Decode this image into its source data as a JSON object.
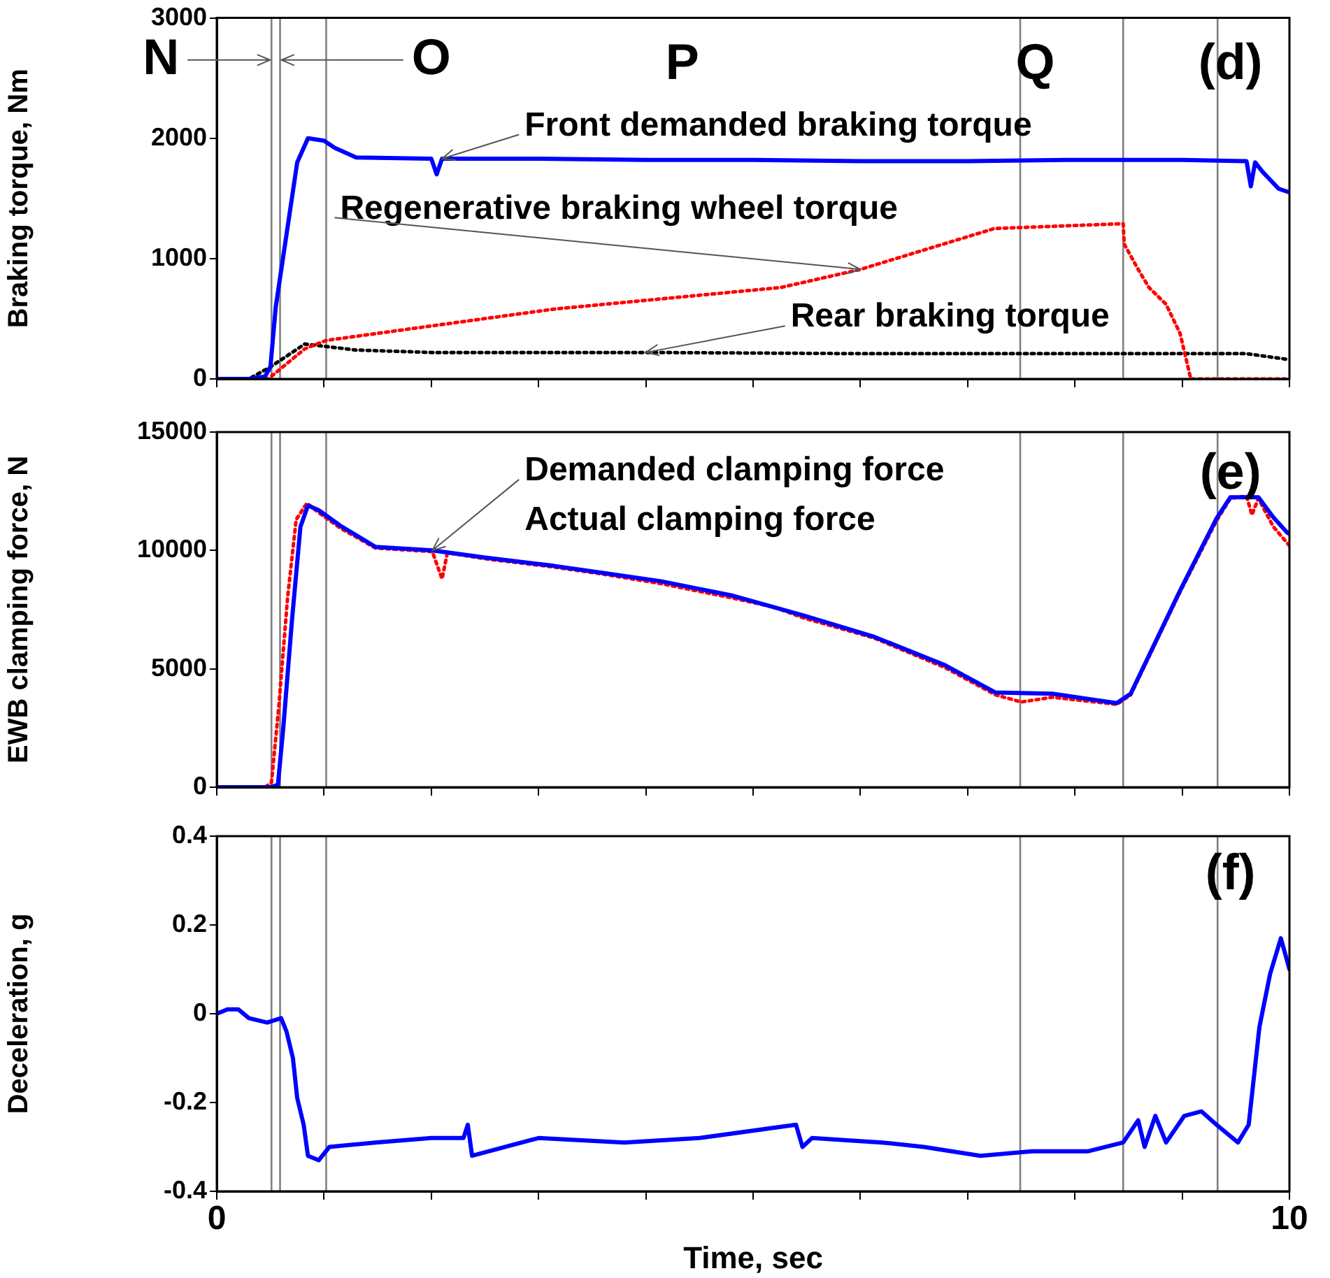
{
  "chart_data": [
    {
      "type": "line",
      "ylabel": "Braking torque, Nm",
      "xlim": [
        0,
        10
      ],
      "ylim": [
        0,
        3000
      ],
      "yticks": [
        0,
        1000,
        2000,
        3000
      ],
      "xticks": [
        {
          "value": 0,
          "label": null
        },
        {
          "value": 1,
          "label": null
        },
        {
          "value": 2,
          "label": null
        },
        {
          "value": 3,
          "label": null
        },
        {
          "value": 4,
          "label": null
        },
        {
          "value": 5,
          "label": null
        },
        {
          "value": 6,
          "label": null
        },
        {
          "value": 7,
          "label": null
        },
        {
          "value": 8,
          "label": null
        },
        {
          "value": 9,
          "label": null
        },
        {
          "value": 10,
          "label": null
        }
      ],
      "tick_labels": "y",
      "grid": false,
      "legend": false,
      "marker": "none",
      "annotations": [
        {
          "text": "N",
          "x": 0.51,
          "y": 2650
        },
        {
          "text": "O",
          "x": 0.59,
          "y": 2650
        },
        "P",
        "Q",
        "(d)"
      ],
      "ref_lines": [
        {
          "axis": "x",
          "value": 0.51,
          "color": "#808080"
        },
        {
          "axis": "x",
          "value": 0.59,
          "color": "#808080"
        },
        {
          "axis": "x",
          "value": 1.02,
          "color": "#808080"
        },
        {
          "axis": "x",
          "value": 7.49,
          "color": "#808080"
        },
        {
          "axis": "x",
          "value": 8.45,
          "color": "#808080"
        },
        {
          "axis": "x",
          "value": 9.33,
          "color": "#808080"
        }
      ],
      "series": [
        {
          "name": "Front demanded braking torque",
          "color": "#0000ff",
          "line_style": "solid",
          "x": [
            0,
            0.3,
            0.45,
            0.5,
            0.55,
            0.65,
            0.75,
            0.85,
            1.0,
            1.1,
            1.3,
            2.0,
            2.05,
            2.1,
            3,
            4,
            5,
            6,
            7,
            8,
            9,
            9.6,
            9.64,
            9.68,
            9.75,
            9.9,
            10
          ],
          "values": [
            0,
            0,
            20,
            100,
            600,
            1200,
            1800,
            2000,
            1980,
            1920,
            1840,
            1830,
            1700,
            1830,
            1830,
            1820,
            1820,
            1810,
            1810,
            1820,
            1820,
            1810,
            1600,
            1800,
            1720,
            1580,
            1550
          ]
        },
        {
          "name": "Regenerative braking wheel torque",
          "color": "#ff0000",
          "line_style": "dotted",
          "x": [
            0,
            0.48,
            0.82,
            1.02,
            3.14,
            5.26,
            6.0,
            7.25,
            8.45,
            8.46,
            8.59,
            8.69,
            8.85,
            8.98,
            9.08,
            10
          ],
          "values": [
            0,
            0,
            250,
            320,
            580,
            760,
            910,
            1250,
            1290,
            1120,
            910,
            760,
            620,
            380,
            0,
            0
          ]
        },
        {
          "name": "Rear braking torque",
          "color": "#000000",
          "line_style": "dotted",
          "x": [
            0,
            0.3,
            0.5,
            0.82,
            1.3,
            2,
            4,
            6,
            8,
            9.6,
            10
          ],
          "values": [
            0,
            0,
            100,
            290,
            240,
            220,
            220,
            210,
            210,
            210,
            160
          ]
        }
      ]
    },
    {
      "type": "line",
      "ylabel": "EWB clamping force, N",
      "xlim": [
        0,
        10
      ],
      "ylim": [
        0,
        15000
      ],
      "yticks": [
        0,
        5000,
        10000,
        15000
      ],
      "xticks": [
        {
          "value": 0,
          "label": null
        },
        {
          "value": 1,
          "label": null
        },
        {
          "value": 2,
          "label": null
        },
        {
          "value": 3,
          "label": null
        },
        {
          "value": 4,
          "label": null
        },
        {
          "value": 5,
          "label": null
        },
        {
          "value": 6,
          "label": null
        },
        {
          "value": 7,
          "label": null
        },
        {
          "value": 8,
          "label": null
        },
        {
          "value": 9,
          "label": null
        },
        {
          "value": 10,
          "label": null
        }
      ],
      "tick_labels": "y",
      "grid": false,
      "legend": false,
      "marker": "none",
      "annotations": [
        "(e)"
      ],
      "ref_lines": [
        {
          "axis": "x",
          "value": 0.51,
          "color": "#808080"
        },
        {
          "axis": "x",
          "value": 0.59,
          "color": "#808080"
        },
        {
          "axis": "x",
          "value": 1.02,
          "color": "#808080"
        },
        {
          "axis": "x",
          "value": 7.49,
          "color": "#808080"
        },
        {
          "axis": "x",
          "value": 8.45,
          "color": "#808080"
        },
        {
          "axis": "x",
          "value": 9.33,
          "color": "#808080"
        }
      ],
      "series": [
        {
          "name": "Demanded clamping force",
          "color": "#0000ff",
          "line_style": "solid",
          "x": [
            0,
            0.5,
            0.57,
            0.62,
            0.7,
            0.78,
            0.85,
            0.95,
            1.15,
            1.48,
            2.01,
            2.5,
            3.14,
            3.6,
            4.14,
            4.8,
            5.47,
            6.13,
            6.79,
            7.26,
            7.79,
            8.39,
            8.52,
            8.98,
            9.32,
            9.45,
            9.71,
            9.85,
            9.98,
            10
          ],
          "values": [
            0,
            0,
            100,
            2500,
            7000,
            11000,
            11900,
            11700,
            11050,
            10150,
            10000,
            9700,
            9350,
            9050,
            8700,
            8100,
            7250,
            6350,
            5150,
            4000,
            3950,
            3550,
            3950,
            8300,
            11350,
            12250,
            12250,
            11400,
            10750,
            10700
          ]
        },
        {
          "name": "Actual clamping force",
          "color": "#ff0000",
          "line_style": "dotted",
          "x": [
            0,
            0.45,
            0.51,
            0.58,
            0.66,
            0.74,
            0.84,
            0.95,
            1.15,
            1.48,
            2.01,
            2.1,
            2.15,
            2.5,
            3.14,
            3.6,
            4.14,
            4.8,
            5.2,
            5.47,
            6.13,
            6.79,
            7.26,
            7.5,
            7.79,
            8.39,
            8.52,
            8.98,
            9.32,
            9.45,
            9.6,
            9.65,
            9.71,
            9.85,
            10
          ],
          "values": [
            0,
            0,
            200,
            3500,
            8000,
            11300,
            12000,
            11600,
            10950,
            10100,
            9950,
            8800,
            9900,
            9650,
            9300,
            9000,
            8600,
            8000,
            7600,
            7150,
            6300,
            5050,
            3900,
            3600,
            3800,
            3500,
            3900,
            8250,
            11250,
            12200,
            12300,
            11500,
            12200,
            11000,
            10200
          ]
        }
      ]
    },
    {
      "type": "line",
      "xlabel": "Time, sec",
      "ylabel": "Deceleration, g",
      "xlim": [
        0,
        10
      ],
      "ylim": [
        -0.4,
        0.4
      ],
      "yticks": [
        -0.4,
        -0.2,
        0,
        0.2,
        0.4
      ],
      "xticks": [
        0,
        {
          "value": 1,
          "label": null
        },
        {
          "value": 2,
          "label": null
        },
        {
          "value": 3,
          "label": null
        },
        {
          "value": 4,
          "label": null
        },
        {
          "value": 5,
          "label": null
        },
        {
          "value": 6,
          "label": null
        },
        {
          "value": 7,
          "label": null
        },
        {
          "value": 8,
          "label": null
        },
        {
          "value": 9,
          "label": null
        },
        10
      ],
      "grid": false,
      "legend": false,
      "marker": "none",
      "annotations": [
        "(f)"
      ],
      "ref_lines": [
        {
          "axis": "x",
          "value": 0.51,
          "color": "#808080"
        },
        {
          "axis": "x",
          "value": 0.59,
          "color": "#808080"
        },
        {
          "axis": "x",
          "value": 1.02,
          "color": "#808080"
        },
        {
          "axis": "x",
          "value": 7.49,
          "color": "#808080"
        },
        {
          "axis": "x",
          "value": 8.45,
          "color": "#808080"
        },
        {
          "axis": "x",
          "value": 9.33,
          "color": "#808080"
        }
      ],
      "series": [
        {
          "color": "#0000ff",
          "line_style": "solid",
          "x": [
            0,
            0.1,
            0.2,
            0.3,
            0.47,
            0.6,
            0.65,
            0.71,
            0.75,
            0.81,
            0.85,
            0.95,
            1.05,
            1.48,
            2.0,
            2.3,
            2.34,
            2.38,
            3.0,
            3.8,
            4.5,
            5.4,
            5.46,
            5.55,
            6.2,
            6.59,
            7.12,
            7.6,
            8.12,
            8.45,
            8.59,
            8.65,
            8.75,
            8.85,
            9.02,
            9.18,
            9.32,
            9.52,
            9.62,
            9.72,
            9.82,
            9.92,
            10
          ],
          "values": [
            0,
            0.01,
            0.01,
            -0.01,
            -0.02,
            -0.01,
            -0.04,
            -0.1,
            -0.19,
            -0.25,
            -0.32,
            -0.33,
            -0.3,
            -0.29,
            -0.28,
            -0.28,
            -0.25,
            -0.32,
            -0.28,
            -0.29,
            -0.28,
            -0.25,
            -0.3,
            -0.28,
            -0.29,
            -0.3,
            -0.32,
            -0.31,
            -0.31,
            -0.29,
            -0.24,
            -0.3,
            -0.23,
            -0.29,
            -0.23,
            -0.22,
            -0.25,
            -0.29,
            -0.25,
            -0.03,
            0.09,
            0.17,
            0.1
          ]
        }
      ]
    }
  ]
}
